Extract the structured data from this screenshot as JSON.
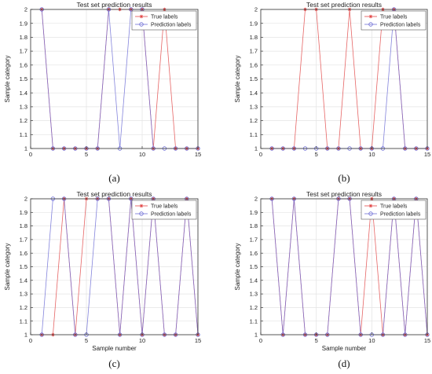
{
  "chart_data": [
    {
      "type": "line",
      "panel_label": "(a)",
      "title": "Test set prediction results",
      "xlabel": "",
      "ylabel": "Sample category",
      "xlim": [
        0,
        15
      ],
      "ylim": [
        1,
        2
      ],
      "xticks": [
        0,
        5,
        10,
        15
      ],
      "yticks": [
        1,
        1.1,
        1.2,
        1.3,
        1.4,
        1.5,
        1.6,
        1.7,
        1.8,
        1.9,
        2
      ],
      "grid": true,
      "legend_position": "top-right",
      "x": [
        1,
        2,
        3,
        4,
        5,
        6,
        7,
        8,
        9,
        10,
        11,
        12,
        13,
        14,
        15
      ],
      "series": [
        {
          "name": "True labels",
          "color": "#e24a4a",
          "marker": "star",
          "values": [
            2,
            1,
            1,
            1,
            1,
            1,
            2,
            2,
            2,
            2,
            1,
            2,
            1,
            1,
            1
          ]
        },
        {
          "name": "Prediction labels",
          "color": "#6f6fd6",
          "marker": "circle",
          "values": [
            2,
            1,
            1,
            1,
            1,
            1,
            2,
            1,
            2,
            2,
            1,
            1,
            1,
            1,
            1
          ]
        }
      ]
    },
    {
      "type": "line",
      "panel_label": "(b)",
      "title": "Test set prediction results",
      "xlabel": "",
      "ylabel": "Sample category",
      "xlim": [
        0,
        15
      ],
      "ylim": [
        1,
        2
      ],
      "xticks": [
        0,
        5,
        10,
        15
      ],
      "yticks": [
        1,
        1.1,
        1.2,
        1.3,
        1.4,
        1.5,
        1.6,
        1.7,
        1.8,
        1.9,
        2
      ],
      "grid": true,
      "legend_position": "top-right",
      "x": [
        1,
        2,
        3,
        4,
        5,
        6,
        7,
        8,
        9,
        10,
        11,
        12,
        13,
        14,
        15
      ],
      "series": [
        {
          "name": "True labels",
          "color": "#e24a4a",
          "marker": "star",
          "values": [
            1,
            1,
            1,
            2,
            2,
            1,
            1,
            2,
            1,
            1,
            2,
            2,
            1,
            1,
            1
          ]
        },
        {
          "name": "Prediction labels",
          "color": "#6f6fd6",
          "marker": "circle",
          "values": [
            1,
            1,
            1,
            1,
            1,
            1,
            1,
            1,
            1,
            1,
            1,
            2,
            1,
            1,
            1
          ]
        }
      ]
    },
    {
      "type": "line",
      "panel_label": "(c)",
      "title": "Test set prediction results",
      "xlabel": "Sample number",
      "ylabel": "Sample category",
      "xlim": [
        0,
        15
      ],
      "ylim": [
        1,
        2
      ],
      "xticks": [
        0,
        5,
        10,
        15
      ],
      "yticks": [
        1,
        1.1,
        1.2,
        1.3,
        1.4,
        1.5,
        1.6,
        1.7,
        1.8,
        1.9,
        2
      ],
      "grid": true,
      "legend_position": "top-right",
      "x": [
        1,
        2,
        3,
        4,
        5,
        6,
        7,
        8,
        9,
        10,
        11,
        12,
        13,
        14,
        15
      ],
      "series": [
        {
          "name": "True labels",
          "color": "#e24a4a",
          "marker": "star",
          "values": [
            1,
            1,
            2,
            1,
            2,
            2,
            2,
            1,
            2,
            1,
            2,
            1,
            1,
            2,
            1
          ]
        },
        {
          "name": "Prediction labels",
          "color": "#6f6fd6",
          "marker": "circle",
          "values": [
            1,
            2,
            2,
            1,
            1,
            2,
            2,
            1,
            2,
            1,
            2,
            1,
            1,
            2,
            1
          ]
        }
      ]
    },
    {
      "type": "line",
      "panel_label": "(d)",
      "title": "Test set prediction results",
      "xlabel": "Sample number",
      "ylabel": "Sample category",
      "xlim": [
        0,
        15
      ],
      "ylim": [
        1,
        2
      ],
      "xticks": [
        0,
        5,
        10,
        15
      ],
      "yticks": [
        1,
        1.1,
        1.2,
        1.3,
        1.4,
        1.5,
        1.6,
        1.7,
        1.8,
        1.9,
        2
      ],
      "grid": true,
      "legend_position": "top-right",
      "x": [
        1,
        2,
        3,
        4,
        5,
        6,
        7,
        8,
        9,
        10,
        11,
        12,
        13,
        14,
        15
      ],
      "series": [
        {
          "name": "True labels",
          "color": "#e24a4a",
          "marker": "star",
          "values": [
            2,
            1,
            2,
            1,
            1,
            1,
            2,
            2,
            1,
            2,
            1,
            2,
            1,
            2,
            1
          ]
        },
        {
          "name": "Prediction labels",
          "color": "#6f6fd6",
          "marker": "circle",
          "values": [
            2,
            1,
            2,
            1,
            1,
            1,
            2,
            2,
            1,
            1,
            1,
            2,
            1,
            2,
            1
          ]
        }
      ]
    }
  ]
}
